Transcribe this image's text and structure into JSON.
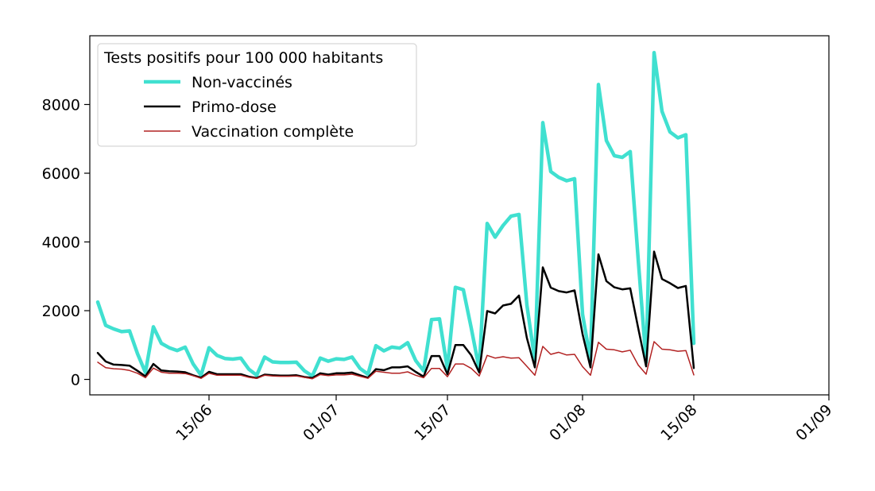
{
  "chart_data": {
    "type": "line",
    "title": "",
    "xlabel": "",
    "ylabel": "",
    "legend": {
      "title": "Tests positifs pour 100 000 habitants",
      "placement": "top-left"
    },
    "x_axis": {
      "kind": "date",
      "year": 2021,
      "start": "2021-05-31",
      "end": "2021-09-01",
      "tick_dates": [
        "2021-06-15",
        "2021-07-01",
        "2021-07-15",
        "2021-08-01",
        "2021-08-15",
        "2021-09-01"
      ],
      "tick_labels": [
        "15/06",
        "01/07",
        "15/07",
        "01/08",
        "15/08",
        "01/09"
      ]
    },
    "y_axis": {
      "ylim": [
        -450,
        10000
      ],
      "ticks": [
        0,
        2000,
        4000,
        6000,
        8000
      ],
      "tick_labels": [
        "0",
        "2000",
        "4000",
        "6000",
        "8000"
      ]
    },
    "grid": false,
    "x_dates": [
      "2021-06-01",
      "2021-06-02",
      "2021-06-03",
      "2021-06-04",
      "2021-06-05",
      "2021-06-06",
      "2021-06-07",
      "2021-06-08",
      "2021-06-09",
      "2021-06-10",
      "2021-06-11",
      "2021-06-12",
      "2021-06-13",
      "2021-06-14",
      "2021-06-15",
      "2021-06-16",
      "2021-06-17",
      "2021-06-18",
      "2021-06-19",
      "2021-06-20",
      "2021-06-21",
      "2021-06-22",
      "2021-06-23",
      "2021-06-24",
      "2021-06-25",
      "2021-06-26",
      "2021-06-27",
      "2021-06-28",
      "2021-06-29",
      "2021-06-30",
      "2021-07-01",
      "2021-07-02",
      "2021-07-03",
      "2021-07-04",
      "2021-07-05",
      "2021-07-06",
      "2021-07-07",
      "2021-07-08",
      "2021-07-09",
      "2021-07-10",
      "2021-07-11",
      "2021-07-12",
      "2021-07-13",
      "2021-07-14",
      "2021-07-15",
      "2021-07-16",
      "2021-07-17",
      "2021-07-18",
      "2021-07-19",
      "2021-07-20",
      "2021-07-21",
      "2021-07-22",
      "2021-07-23",
      "2021-07-24",
      "2021-07-25",
      "2021-07-26",
      "2021-07-27",
      "2021-07-28",
      "2021-07-29",
      "2021-07-30",
      "2021-07-31",
      "2021-08-01",
      "2021-08-02",
      "2021-08-03",
      "2021-08-04",
      "2021-08-05",
      "2021-08-06",
      "2021-08-07",
      "2021-08-08",
      "2021-08-09",
      "2021-08-10",
      "2021-08-11",
      "2021-08-12",
      "2021-08-13",
      "2021-08-14",
      "2021-08-15"
    ],
    "series": [
      {
        "name": "Non-vaccinés",
        "color": "#40e0d0",
        "values": [
          2250,
          1570,
          1470,
          1390,
          1410,
          750,
          200,
          1530,
          1050,
          920,
          840,
          940,
          450,
          120,
          920,
          700,
          610,
          590,
          620,
          300,
          120,
          650,
          510,
          490,
          490,
          500,
          250,
          100,
          620,
          530,
          600,
          580,
          650,
          320,
          150,
          980,
          830,
          940,
          910,
          1070,
          550,
          250,
          1740,
          1760,
          300,
          2680,
          2610,
          1490,
          300,
          4540,
          4140,
          4480,
          4750,
          4800,
          2160,
          550,
          7470,
          6050,
          5880,
          5780,
          5840,
          1900,
          550,
          8580,
          6950,
          6510,
          6460,
          6630,
          3500,
          500,
          9510,
          7800,
          7200,
          7030,
          7120,
          1050
        ]
      },
      {
        "name": "Primo-dose",
        "color": "#000000",
        "values": [
          770,
          520,
          430,
          420,
          400,
          250,
          90,
          450,
          260,
          240,
          230,
          210,
          120,
          50,
          220,
          150,
          150,
          150,
          150,
          80,
          40,
          140,
          120,
          110,
          110,
          120,
          70,
          40,
          180,
          140,
          180,
          180,
          200,
          120,
          50,
          300,
          270,
          350,
          350,
          380,
          220,
          80,
          680,
          680,
          150,
          1000,
          1000,
          700,
          200,
          1990,
          1920,
          2150,
          2200,
          2440,
          1200,
          350,
          3260,
          2670,
          2570,
          2530,
          2590,
          1320,
          350,
          3640,
          2860,
          2680,
          2620,
          2650,
          1500,
          380,
          3720,
          2920,
          2800,
          2660,
          2720,
          330
        ]
      },
      {
        "name": "Vaccination complète",
        "color": "#b22222",
        "values": [
          500,
          340,
          310,
          300,
          260,
          180,
          50,
          330,
          210,
          180,
          180,
          170,
          110,
          30,
          180,
          120,
          120,
          120,
          120,
          60,
          30,
          120,
          100,
          90,
          90,
          100,
          60,
          20,
          140,
          110,
          130,
          130,
          150,
          90,
          30,
          240,
          210,
          180,
          180,
          220,
          120,
          50,
          320,
          320,
          80,
          450,
          450,
          320,
          100,
          700,
          620,
          660,
          620,
          630,
          380,
          120,
          960,
          730,
          790,
          710,
          730,
          370,
          120,
          1080,
          880,
          860,
          800,
          850,
          420,
          150,
          1100,
          880,
          860,
          820,
          840,
          130
        ]
      }
    ]
  }
}
